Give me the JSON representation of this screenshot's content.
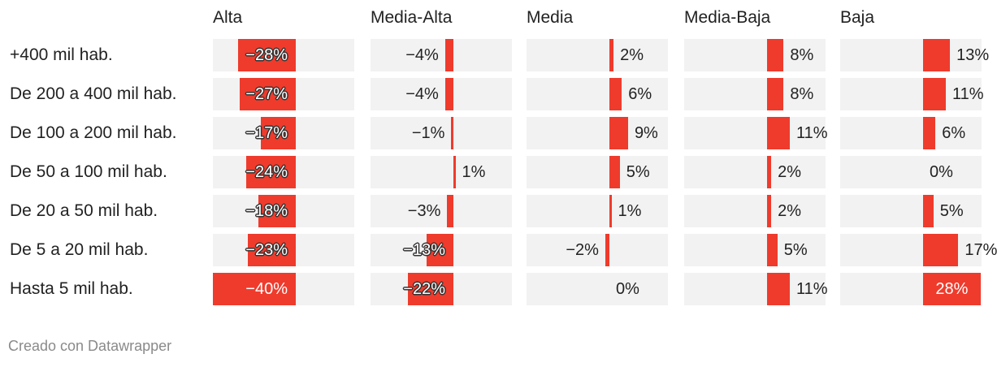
{
  "chart_data": {
    "type": "bar",
    "variant": "small-multiples-horizontal-bar",
    "title": "",
    "columns": [
      "Alta",
      "Media-Alta",
      "Media",
      "Media-Baja",
      "Baja"
    ],
    "categories": [
      "+400 mil hab.",
      "De 200 a 400 mil hab.",
      "De 100 a 200 mil hab.",
      "De 50 a 100 mil hab.",
      "De 20 a 50 mil hab.",
      "De 5 a 20 mil hab.",
      "Hasta 5 mil hab."
    ],
    "series": [
      {
        "name": "Alta",
        "values": [
          -28,
          -27,
          -17,
          -24,
          -18,
          -23,
          -40
        ],
        "labels": [
          "−28%",
          "−27%",
          "−17%",
          "−24%",
          "−18%",
          "−23%",
          "−40%"
        ]
      },
      {
        "name": "Media-Alta",
        "values": [
          -4,
          -4,
          -1,
          1,
          -3,
          -13,
          -22
        ],
        "labels": [
          "−4%",
          "−4%",
          "−1%",
          "1%",
          "−3%",
          "−13%",
          "−22%"
        ]
      },
      {
        "name": "Media",
        "values": [
          2,
          6,
          9,
          5,
          1,
          -2,
          0
        ],
        "labels": [
          "2%",
          "6%",
          "9%",
          "5%",
          "1%",
          "−2%",
          "0%"
        ]
      },
      {
        "name": "Media-Baja",
        "values": [
          8,
          8,
          11,
          2,
          2,
          5,
          11
        ],
        "labels": [
          "8%",
          "8%",
          "11%",
          "2%",
          "2%",
          "5%",
          "11%"
        ]
      },
      {
        "name": "Baja",
        "values": [
          13,
          11,
          6,
          0,
          5,
          17,
          28
        ],
        "labels": [
          "13%",
          "11%",
          "6%",
          "0%",
          "5%",
          "17%",
          "28%"
        ]
      }
    ],
    "xlim": [
      -40,
      28
    ],
    "unit": "%"
  },
  "footer": {
    "credit": "Creado con Datawrapper"
  },
  "colors": {
    "bar": "#ef3b2c",
    "cell_background": "#f2f2f2",
    "text": "#222222",
    "footer_text": "#8a8a8a"
  }
}
